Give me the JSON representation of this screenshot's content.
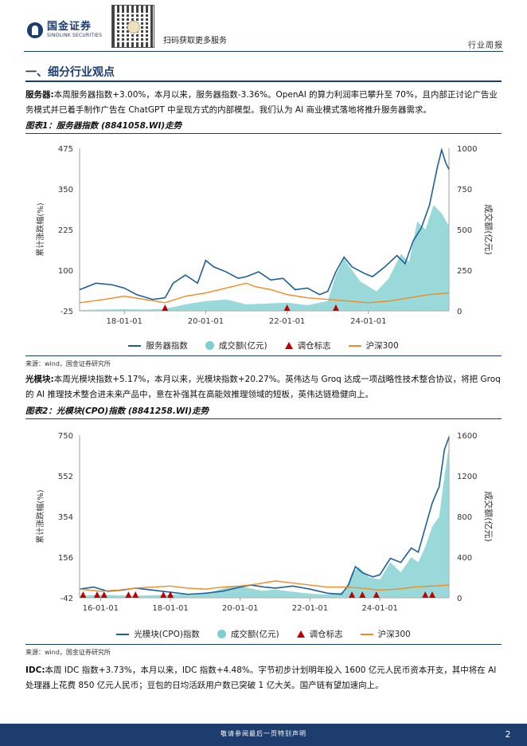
{
  "header": {
    "company_cn": "国金证券",
    "company_en": "SINOLINK SECURITIES",
    "scan_text": "扫码获取更多服务",
    "report_type": "行业周报"
  },
  "section": {
    "title": "一、细分行业观点"
  },
  "paragraphs": [
    {
      "label": "服务器:",
      "text": "本周服务器指数+3.00%，本月以来，服务器指数-3.36%。OpenAI 的算力利润率已攀升至 70%，且内部正讨论广告业务模式并已着手制作广告在 ChatGPT 中呈现方式的内部模型。我们认为 AI 商业模式落地将推升服务器需求。"
    },
    {
      "label": "光模块:",
      "text": "本周光模块指数+5.17%，本月以来，光模块指数+20.27%。英伟达与 Groq 达成一项战略性技术整合协议，将把 Groq 的 AI 推理技术整合进未来产品中，意在补强其在高能效推理领域的短板，英伟达链稳健向上。"
    },
    {
      "label": "IDC:",
      "text": "本周 IDC 指数+3.73%，本月以来，IDC 指数+4.48%。字节初步计划明年投入 1600 亿元人民币资本开支，其中将在 AI 处理器上花费 850 亿元人民币；豆包的日均活跃用户数已突破 1 亿大关。国产链有望加速向上。"
    }
  ],
  "figures": [
    {
      "caption": "图表1：服务器指数 (8841058.WI)走势",
      "source": "来源：wind，国金证券研究所"
    },
    {
      "caption": "图表2：光模块(CPO)指数 (8841258.WI)走势",
      "source": "来源：wind，国金证券研究所"
    }
  ],
  "colors": {
    "navy": "#1c3d6e",
    "line_index": "#1f5f96",
    "volume": "#7fcfd0",
    "marker": "#c00000",
    "hs300": "#f08a24"
  },
  "chart_data": [
    {
      "type": "line",
      "title": "服务器指数 (8841058.WI)走势",
      "ylabel_left": "累计涨跌幅(%)",
      "ylabel_right": "成交额(亿元)",
      "yticks_left": [
        "475",
        "350",
        "225",
        "100",
        "-25"
      ],
      "yticks_right": [
        "1000",
        "750",
        "500",
        "250",
        "0"
      ],
      "ylim_left": [
        -25,
        475
      ],
      "ylim_right": [
        0,
        1000
      ],
      "xticks": [
        "18-01-01",
        "20-01-01",
        "22-01-01",
        "24-01-01"
      ],
      "xtick_years": [
        2018,
        2020,
        2022,
        2024
      ],
      "xlim": [
        2016.9,
        2025.98
      ],
      "grid": false,
      "legend": "bottom",
      "series": [
        {
          "name": "服务器指数",
          "kind": "line",
          "axis": "left",
          "x": [
            2016.9,
            2017.3,
            2017.7,
            2018.0,
            2018.3,
            2018.7,
            2019.0,
            2019.2,
            2019.5,
            2019.8,
            2020.0,
            2020.2,
            2020.5,
            2020.8,
            2021.0,
            2021.3,
            2021.6,
            2021.9,
            2022.2,
            2022.5,
            2022.8,
            2023.0,
            2023.2,
            2023.4,
            2023.6,
            2023.9,
            2024.1,
            2024.4,
            2024.7,
            2024.9,
            2025.1,
            2025.3,
            2025.5,
            2025.7,
            2025.8,
            2025.9,
            2025.98
          ],
          "values": [
            40,
            60,
            55,
            45,
            25,
            10,
            15,
            60,
            85,
            60,
            130,
            110,
            95,
            75,
            80,
            95,
            70,
            75,
            40,
            45,
            25,
            35,
            95,
            140,
            110,
            90,
            80,
            110,
            145,
            120,
            190,
            230,
            300,
            420,
            470,
            430,
            410
          ]
        },
        {
          "name": "成交额(亿元)",
          "kind": "area",
          "axis": "right",
          "x": [
            2016.9,
            2017.5,
            2018.0,
            2018.5,
            2019.0,
            2019.5,
            2020.0,
            2020.5,
            2021.0,
            2021.5,
            2022.0,
            2022.5,
            2023.0,
            2023.2,
            2023.4,
            2023.6,
            2023.8,
            2024.0,
            2024.2,
            2024.5,
            2024.8,
            2025.0,
            2025.2,
            2025.4,
            2025.6,
            2025.8,
            2025.98
          ],
          "values": [
            5,
            8,
            10,
            8,
            12,
            40,
            60,
            70,
            40,
            45,
            50,
            35,
            60,
            220,
            320,
            250,
            180,
            150,
            120,
            200,
            350,
            300,
            550,
            500,
            650,
            600,
            520
          ]
        },
        {
          "name": "调仓标志",
          "kind": "marker",
          "axis": "left",
          "x": [
            2019.0,
            2022.0,
            2023.2
          ],
          "values": [
            -25,
            -25,
            -25
          ]
        },
        {
          "name": "沪深300",
          "kind": "line",
          "axis": "left",
          "x": [
            2016.9,
            2017.5,
            2018.0,
            2018.5,
            2019.0,
            2019.5,
            2020.0,
            2020.5,
            2021.0,
            2021.2,
            2021.6,
            2022.0,
            2022.5,
            2023.0,
            2023.5,
            2024.0,
            2024.5,
            2025.0,
            2025.5,
            2025.98
          ],
          "values": [
            0,
            10,
            20,
            10,
            0,
            20,
            30,
            45,
            60,
            50,
            40,
            25,
            15,
            10,
            5,
            0,
            5,
            15,
            25,
            30
          ]
        }
      ]
    },
    {
      "type": "line",
      "title": "光模块(CPO)指数 (8841258.WI)走势",
      "ylabel_left": "累计涨跌幅(%)",
      "ylabel_right": "成交额(亿元)",
      "yticks_left": [
        "750",
        "552",
        "354",
        "156",
        "-42"
      ],
      "yticks_right": [
        "1600",
        "1200",
        "800",
        "400",
        "0"
      ],
      "ylim_left": [
        -42,
        750
      ],
      "ylim_right": [
        0,
        1600
      ],
      "xticks": [
        "16-01-01",
        "18-01-01",
        "20-01-01",
        "22-01-01",
        "24-01-01"
      ],
      "xtick_years": [
        2016,
        2018,
        2020,
        2022,
        2024
      ],
      "xlim": [
        2015.4,
        2025.98
      ],
      "grid": false,
      "legend": "bottom",
      "series": [
        {
          "name": "光模块(CPO)指数",
          "kind": "line",
          "axis": "left",
          "x": [
            2015.4,
            2015.8,
            2016.2,
            2016.6,
            2017.0,
            2017.5,
            2018.0,
            2018.5,
            2019.0,
            2019.5,
            2020.0,
            2020.3,
            2020.7,
            2021.0,
            2021.5,
            2022.0,
            2022.5,
            2022.9,
            2023.1,
            2023.3,
            2023.5,
            2023.8,
            2024.0,
            2024.3,
            2024.6,
            2024.9,
            2025.1,
            2025.3,
            2025.5,
            2025.7,
            2025.85,
            2025.98
          ],
          "values": [
            0,
            10,
            -10,
            -5,
            5,
            -5,
            -15,
            -25,
            -20,
            -10,
            10,
            20,
            10,
            5,
            15,
            0,
            -20,
            -25,
            20,
            110,
            80,
            60,
            70,
            150,
            130,
            200,
            180,
            300,
            420,
            500,
            680,
            740
          ]
        },
        {
          "name": "成交额(亿元)",
          "kind": "area",
          "axis": "right",
          "x": [
            2015.4,
            2016.0,
            2017.0,
            2018.0,
            2019.0,
            2019.8,
            2020.2,
            2020.6,
            2021.0,
            2021.5,
            2022.0,
            2022.5,
            2023.0,
            2023.2,
            2023.4,
            2023.7,
            2024.0,
            2024.3,
            2024.6,
            2024.9,
            2025.1,
            2025.3,
            2025.5,
            2025.7,
            2025.85,
            2025.98
          ],
          "values": [
            20,
            30,
            20,
            30,
            40,
            120,
            100,
            70,
            80,
            60,
            40,
            30,
            60,
            250,
            300,
            200,
            180,
            350,
            250,
            400,
            350,
            500,
            700,
            800,
            1200,
            1500
          ]
        },
        {
          "name": "调仓标志",
          "kind": "marker",
          "axis": "left",
          "x": [
            2015.5,
            2015.9,
            2016.1,
            2016.8,
            2017.0,
            2017.8,
            2018.0,
            2023.2,
            2023.5,
            2023.9,
            2025.3,
            2025.5
          ],
          "values": [
            -42,
            -42,
            -42,
            -42,
            -42,
            -42,
            -42,
            -42,
            -42,
            -42,
            -42,
            -42
          ]
        },
        {
          "name": "沪深300",
          "kind": "line",
          "axis": "left",
          "x": [
            2015.4,
            2016.0,
            2016.5,
            2017.0,
            2018.0,
            2018.5,
            2019.0,
            2019.5,
            2020.0,
            2020.5,
            2021.0,
            2021.5,
            2022.0,
            2022.5,
            2023.0,
            2023.5,
            2024.0,
            2024.5,
            2025.0,
            2025.5,
            2025.98
          ],
          "values": [
            0,
            -10,
            -5,
            5,
            15,
            5,
            0,
            10,
            15,
            25,
            40,
            30,
            20,
            10,
            10,
            5,
            -5,
            0,
            10,
            15,
            20
          ]
        }
      ]
    }
  ],
  "footer": {
    "text": "敬请参阅最后一页特别声明",
    "page": "2"
  }
}
